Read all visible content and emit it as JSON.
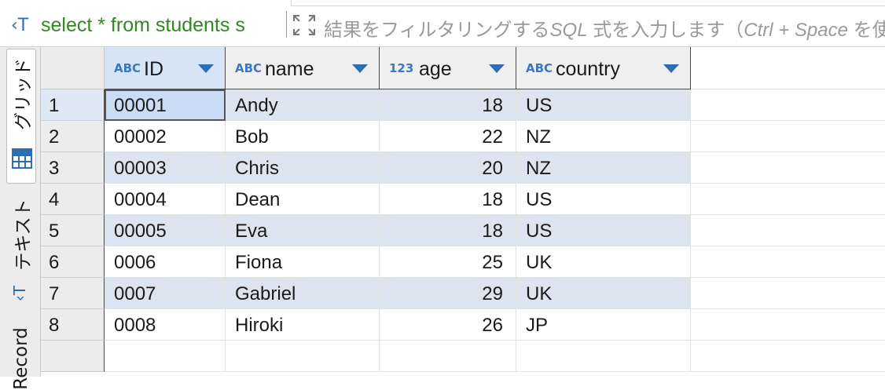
{
  "filter": {
    "query": "select * from students s",
    "hint_prefix": "結果をフィルタリングする",
    "hint_sql": "SQL",
    "hint_mid": " 式を入力します（",
    "hint_keys": "Ctrl + Space",
    "hint_suffix": " を使"
  },
  "sidetabs": {
    "grid_label": "グリッド",
    "text_label": "テキスト",
    "record_label": "Record"
  },
  "columns": [
    {
      "type": "ABC",
      "name": "ID"
    },
    {
      "type": "ABC",
      "name": "name"
    },
    {
      "type": "123",
      "name": "age"
    },
    {
      "type": "ABC",
      "name": "country"
    }
  ],
  "rows": [
    {
      "n": "1",
      "id": "00001",
      "name": "Andy",
      "age": "18",
      "country": "US"
    },
    {
      "n": "2",
      "id": "00002",
      "name": "Bob",
      "age": "22",
      "country": "NZ"
    },
    {
      "n": "3",
      "id": "00003",
      "name": "Chris",
      "age": "20",
      "country": "NZ"
    },
    {
      "n": "4",
      "id": "00004",
      "name": "Dean",
      "age": "18",
      "country": "US"
    },
    {
      "n": "5",
      "id": "00005",
      "name": "Eva",
      "age": "18",
      "country": "US"
    },
    {
      "n": "6",
      "id": "0006",
      "name": "Fiona",
      "age": "25",
      "country": "UK"
    },
    {
      "n": "7",
      "id": "0007",
      "name": "Gabriel",
      "age": "29",
      "country": "UK"
    },
    {
      "n": "8",
      "id": "0008",
      "name": "Hiroki",
      "age": "26",
      "country": "JP"
    }
  ],
  "colors": {
    "accent": "#2f6db0",
    "query_green": "#2e8a1e",
    "row_alt": "#dce4ef"
  }
}
